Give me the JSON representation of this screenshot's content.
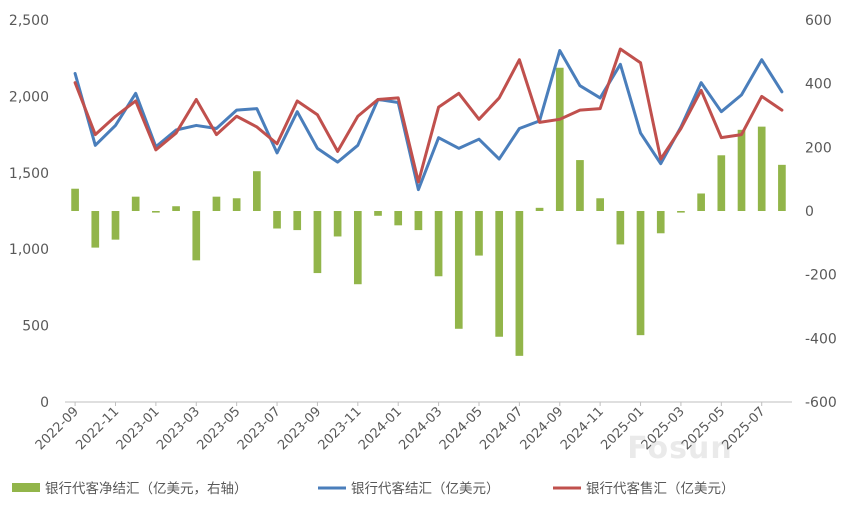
{
  "chart_data": {
    "type": "bar+line",
    "title": "",
    "watermark": "Fosun",
    "x": [
      "2022-09",
      "2022-10",
      "2022-11",
      "2022-12",
      "2023-01",
      "2023-02",
      "2023-03",
      "2023-04",
      "2023-05",
      "2023-06",
      "2023-07",
      "2023-08",
      "2023-09",
      "2023-10",
      "2023-11",
      "2023-12",
      "2024-01",
      "2024-02",
      "2024-03",
      "2024-04",
      "2024-05",
      "2024-06",
      "2024-07",
      "2024-08",
      "2024-09",
      "2024-10",
      "2024-11",
      "2024-12",
      "2025-01",
      "2025-02",
      "2025-03",
      "2025-04",
      "2025-05",
      "2025-06",
      "2025-07",
      "2025-08"
    ],
    "x_tick_labels": [
      "2022-09",
      "2022-11",
      "2023-01",
      "2023-03",
      "2023-05",
      "2023-07",
      "2023-09",
      "2023-11",
      "2024-01",
      "2024-03",
      "2024-05",
      "2024-07",
      "2024-09",
      "2024-11",
      "2025-01",
      "2025-03",
      "2025-05",
      "2025-07"
    ],
    "left_axis": {
      "ylim": [
        0,
        2500
      ],
      "ticks": [
        "0",
        "500",
        "1,000",
        "1,500",
        "2,000",
        "2,500"
      ],
      "tick_values": [
        0,
        500,
        1000,
        1500,
        2000,
        2500
      ]
    },
    "right_axis": {
      "ylim": [
        -600,
        600
      ],
      "ticks": [
        "-600",
        "-400",
        "-200",
        "0",
        "200",
        "400",
        "600"
      ],
      "tick_values": [
        -600,
        -400,
        -200,
        0,
        200,
        400,
        600
      ]
    },
    "series": [
      {
        "name": "银行代客净结汇（亿美元，右轴）",
        "type": "bar",
        "axis": "right",
        "color": "#92b54a",
        "values": [
          70,
          -115,
          -90,
          45,
          -5,
          15,
          -155,
          45,
          40,
          125,
          -55,
          -60,
          -195,
          -80,
          -230,
          -15,
          -45,
          -60,
          -205,
          -370,
          -140,
          -395,
          -455,
          10,
          450,
          160,
          40,
          -105,
          -390,
          -70,
          -5,
          55,
          175,
          255,
          265,
          145
        ]
      },
      {
        "name": "银行代客结汇（亿美元）",
        "type": "line",
        "axis": "left",
        "color": "#4a7ebb",
        "values": [
          2150,
          1680,
          1810,
          2020,
          1670,
          1780,
          1810,
          1790,
          1910,
          1920,
          1630,
          1900,
          1660,
          1570,
          1680,
          1980,
          1960,
          1390,
          1730,
          1660,
          1720,
          1590,
          1790,
          1840,
          2300,
          2070,
          1990,
          2210,
          1760,
          1560,
          1800,
          2090,
          1900,
          2010,
          2240,
          2030
        ]
      },
      {
        "name": "银行代客售汇（亿美元）",
        "type": "line",
        "axis": "left",
        "color": "#c0504d",
        "values": [
          2090,
          1750,
          1870,
          1970,
          1650,
          1760,
          1980,
          1750,
          1870,
          1800,
          1690,
          1970,
          1880,
          1640,
          1870,
          1980,
          1990,
          1440,
          1930,
          2020,
          1850,
          1990,
          2240,
          1830,
          1850,
          1910,
          1920,
          2310,
          2220,
          1590,
          1790,
          2040,
          1730,
          1750,
          2000,
          1910
        ]
      }
    ],
    "legend": [
      "银行代客净结汇（亿美元，右轴）",
      "银行代客结汇（亿美元）",
      "银行代客售汇（亿美元）"
    ],
    "legend_position": "bottom",
    "grid": false
  }
}
